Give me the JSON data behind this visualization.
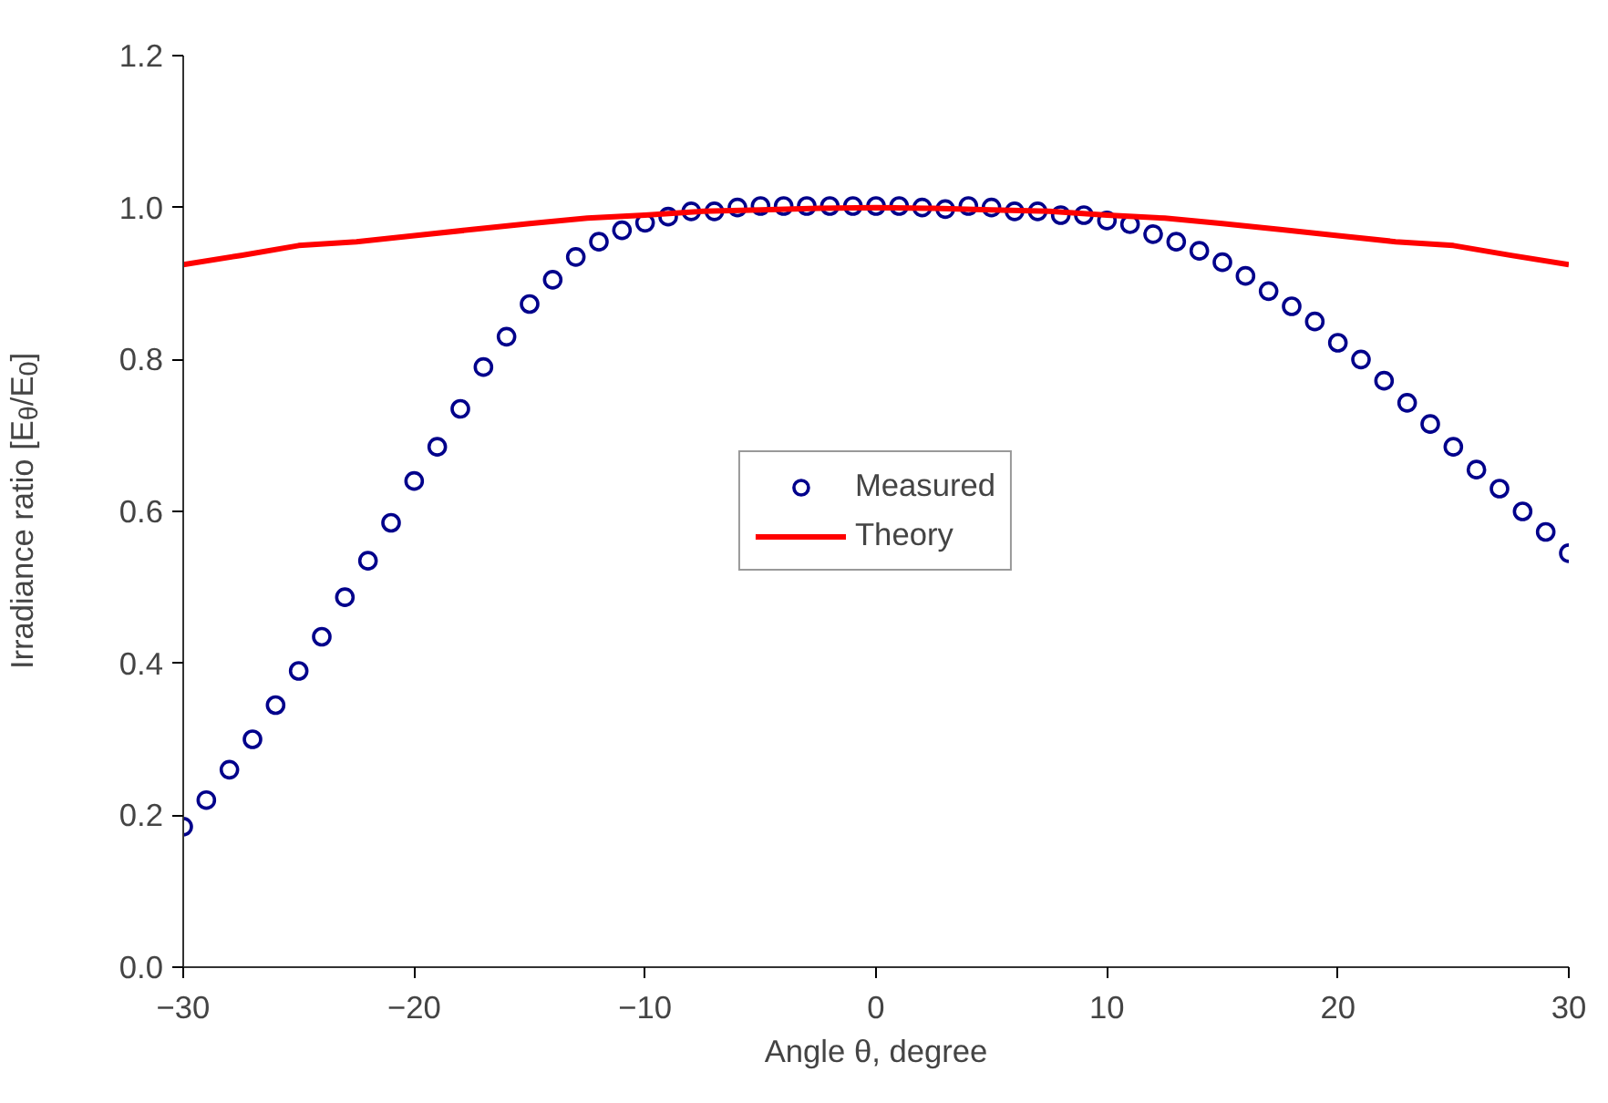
{
  "chart_data": {
    "type": "scatter",
    "xlabel": "Angle θ, degree",
    "ylabel": "Irradiance ratio [E$_{θ}$/E$_{0}$]",
    "xlim": [
      -30,
      30
    ],
    "ylim": [
      0,
      1.2
    ],
    "xticks": [
      -30,
      -20,
      -10,
      0,
      10,
      20,
      30
    ],
    "yticks": [
      {
        "value": 0,
        "label": "0.0"
      },
      {
        "value": 0.2,
        "label": "0.2"
      },
      {
        "value": 0.4,
        "label": "0.4"
      },
      {
        "value": 0.6,
        "label": "0.6"
      },
      {
        "value": 0.8,
        "label": "0.8"
      },
      {
        "value": 1.0,
        "label": "1.0"
      },
      {
        "value": 1.2,
        "label": "1.2"
      }
    ],
    "grid": false,
    "legend": "center",
    "series": [
      {
        "name": "Measured",
        "marker": "circle",
        "color": "#00008b",
        "x": [
          -30,
          -29,
          -28,
          -27,
          -26,
          -25,
          -24,
          -23,
          -22,
          -21,
          -20,
          -19,
          -18,
          -17,
          -16,
          -15,
          -14,
          -13,
          -12,
          -11,
          -10,
          -9,
          -8,
          -7,
          -6,
          -5,
          -4,
          -3,
          -2,
          -1,
          0,
          1,
          2,
          3,
          4,
          5,
          6,
          7,
          8,
          9,
          10,
          11,
          12,
          13,
          14,
          15,
          16,
          17,
          18,
          19,
          20,
          21,
          22,
          23,
          24,
          25,
          26,
          27,
          28,
          29,
          30
        ],
        "values": [
          0.185,
          0.22,
          0.26,
          0.3,
          0.345,
          0.39,
          0.435,
          0.487,
          0.535,
          0.585,
          0.64,
          0.685,
          0.735,
          0.79,
          0.83,
          0.873,
          0.905,
          0.935,
          0.955,
          0.97,
          0.98,
          0.988,
          0.995,
          0.995,
          1.0,
          1.002,
          1.002,
          1.002,
          1.002,
          1.002,
          1.002,
          1.002,
          1.0,
          0.998,
          1.002,
          1.0,
          0.995,
          0.995,
          0.99,
          0.99,
          0.983,
          0.978,
          0.965,
          0.955,
          0.943,
          0.928,
          0.91,
          0.89,
          0.87,
          0.85,
          0.822,
          0.8,
          0.772,
          0.743,
          0.715,
          0.685,
          0.655,
          0.63,
          0.6,
          0.573,
          0.545
        ]
      },
      {
        "name": "Theory",
        "type": "line",
        "line_style": "solid",
        "color": "#ff0000",
        "x": [
          -30,
          -27.5,
          -25,
          -22.5,
          -20,
          -17.5,
          -15,
          -12.5,
          -10,
          -7.5,
          -5,
          -2.5,
          0,
          2.5,
          5,
          7.5,
          10,
          12.5,
          15,
          17.5,
          20,
          22.5,
          25,
          27.5,
          30
        ],
        "values": [
          0.925,
          0.937,
          0.95,
          0.955,
          0.963,
          0.971,
          0.979,
          0.986,
          0.99,
          0.995,
          0.997,
          0.999,
          1.0,
          0.999,
          0.997,
          0.995,
          0.99,
          0.986,
          0.979,
          0.971,
          0.963,
          0.955,
          0.95,
          0.937,
          0.925
        ]
      }
    ]
  }
}
